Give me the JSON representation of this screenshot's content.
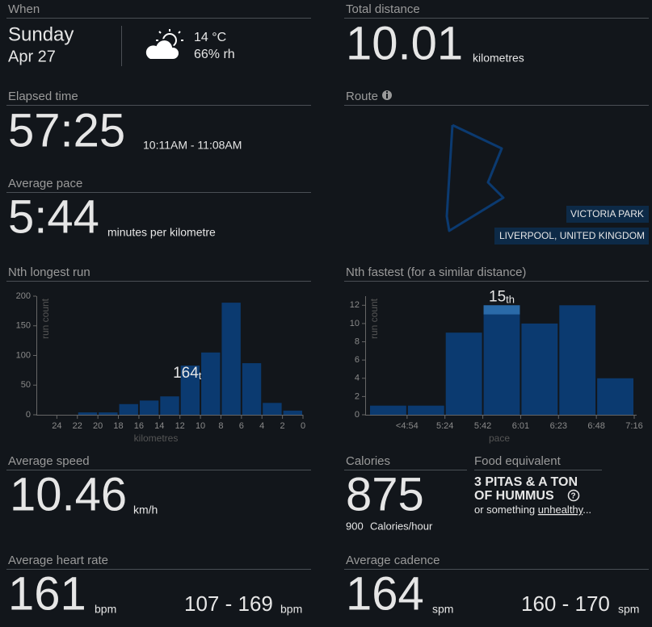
{
  "when": {
    "label": "When",
    "day": "Sunday",
    "date": "Apr 27",
    "temperature": "14 °C",
    "humidity": "66% rh"
  },
  "total_distance": {
    "label": "Total distance",
    "value": "10.01",
    "unit": "kilometres"
  },
  "elapsed_time": {
    "label": "Elapsed time",
    "value": "57:25",
    "range": "10:11AM - 11:08AM"
  },
  "route": {
    "label": "Route",
    "place": "VICTORIA PARK",
    "city": "LIVERPOOL, UNITED KINGDOM"
  },
  "average_pace": {
    "label": "Average pace",
    "value": "5:44",
    "unit": "minutes per kilometre"
  },
  "chart_data": [
    {
      "type": "histogram",
      "title": "Nth longest run",
      "ylabel": "run count",
      "xlabel": "kilometres",
      "bins": [
        22,
        20,
        18,
        16,
        14,
        12,
        10,
        8,
        6,
        4,
        2,
        0
      ],
      "values": [
        4,
        4,
        18,
        24,
        31,
        83,
        105,
        189,
        87,
        20,
        7
      ],
      "xlim": [
        26,
        0
      ],
      "xticks": [
        24,
        22,
        20,
        18,
        16,
        14,
        12,
        10,
        8,
        6,
        4,
        2,
        0
      ],
      "ylim": [
        0,
        200
      ],
      "yticks": [
        0,
        50,
        100,
        150,
        200
      ],
      "color": "#0b3a70",
      "highlight_index": 5,
      "annotation": {
        "rank": "164",
        "suffix": "th"
      }
    },
    {
      "type": "histogram",
      "title": "Nth fastest (for a similar distance)",
      "ylabel": "run count",
      "xlabel": "pace",
      "bins": [
        null,
        "<4:54",
        "5:24",
        "5:42",
        "6:01",
        "6:23",
        "6:48",
        "7:16"
      ],
      "values": [
        1,
        1,
        9,
        12,
        10,
        12,
        4
      ],
      "ylim": [
        0,
        13
      ],
      "yticks": [
        0,
        2,
        4,
        6,
        8,
        10,
        12
      ],
      "color": "#0b3a70",
      "highlight_color": "#2a6aa8",
      "highlight_index": 3,
      "highlight_count": 1,
      "annotation": {
        "rank": "15",
        "suffix": "th"
      }
    }
  ],
  "average_speed": {
    "label": "Average speed",
    "value": "10.46",
    "unit": "km/h"
  },
  "calories": {
    "label": "Calories",
    "value": "875",
    "rate": "900",
    "rate_unit": "Calories/hour"
  },
  "food_equivalent": {
    "label": "Food equivalent",
    "line1": "3 PITAS & A TON",
    "line2": "OF HUMMUS",
    "note_prefix": "or something",
    "link": "unhealthy",
    "note_suffix": "..."
  },
  "heart_rate": {
    "label": "Average heart rate",
    "value": "161",
    "unit": "bpm",
    "range": "107 - 169",
    "range_unit": "bpm"
  },
  "cadence": {
    "label": "Average cadence",
    "value": "164",
    "unit": "spm",
    "range": "160 - 170",
    "range_unit": "spm"
  }
}
